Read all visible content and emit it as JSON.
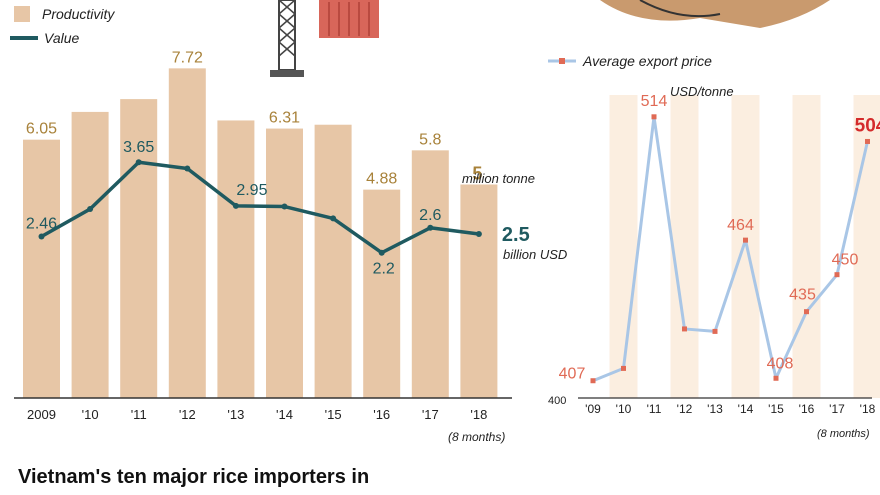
{
  "chart_data": [
    {
      "type": "bar",
      "categories": [
        "2009",
        "'10",
        "'11",
        "'12",
        "'13",
        "'14",
        "'15",
        "'16",
        "'17",
        "'18"
      ],
      "category_note": "(8 months)",
      "series": [
        {
          "name": "Productivity",
          "type": "bar",
          "values": [
            6.05,
            6.7,
            7.0,
            7.72,
            6.5,
            6.31,
            6.4,
            4.88,
            5.8,
            5.0
          ],
          "labels": [
            "6.05",
            "",
            "",
            "7.72",
            "",
            "6.31",
            "",
            "4.88",
            "5.8",
            "5"
          ],
          "unit_label": "million tonne",
          "color": "#e7c6a6",
          "label_color": "#a8823a"
        },
        {
          "name": "Value",
          "type": "line",
          "values": [
            2.46,
            2.9,
            3.65,
            3.55,
            2.95,
            2.94,
            2.75,
            2.2,
            2.6,
            2.5
          ],
          "labels": [
            "2.46",
            "",
            "3.65",
            "",
            "2.95",
            "",
            "",
            "2.2",
            "2.6",
            "2.5"
          ],
          "unit_label": "billion USD",
          "color": "#1f5a60"
        }
      ],
      "legend_position": "top-left",
      "grid": false
    },
    {
      "type": "line",
      "categories": [
        "'09",
        "'10",
        "'11",
        "'12",
        "'13",
        "'14",
        "'15",
        "'16",
        "'17",
        "'18"
      ],
      "category_note": "(8 months)",
      "series": [
        {
          "name": "Average export price",
          "values": [
            407,
            412,
            514,
            428,
            427,
            464,
            408,
            435,
            450,
            504
          ],
          "labels": [
            "407",
            "",
            "514",
            "",
            "",
            "464",
            "408",
            "435",
            "450",
            "504"
          ],
          "color": "#a9c6e6",
          "marker_color": "#e06a55"
        }
      ],
      "unit": "USD/tonne",
      "y_axis_label": "400",
      "ylim": [
        400,
        520
      ],
      "highlight_color": "#d42b2b",
      "band_color": "#fbeee0",
      "legend_position": "top-left",
      "grid": false
    }
  ],
  "bottom_title": "Vietnam's ten major rice importers in"
}
